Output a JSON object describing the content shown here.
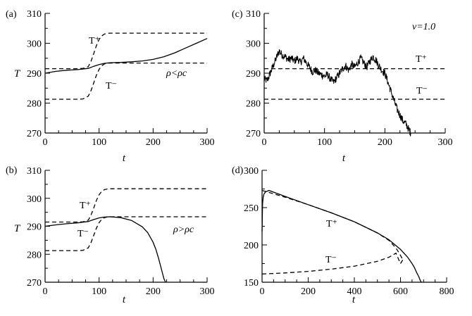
{
  "chart_data": [
    {
      "id": "a",
      "panel_label": "(a)",
      "type": "line",
      "xlabel": "t",
      "ylabel": "T",
      "xlim": [
        0,
        300
      ],
      "ylim": [
        270,
        310
      ],
      "xticks": [
        0,
        100,
        200,
        300
      ],
      "yticks": [
        270,
        280,
        290,
        300,
        310
      ],
      "annotation": "ρ<ρc",
      "series": [
        {
          "role": "T_plus",
          "style": "dashed",
          "label": "T⁺",
          "x": [
            0,
            60,
            70,
            80,
            85,
            90,
            95,
            100,
            105,
            110,
            115,
            120,
            130,
            300
          ],
          "y": [
            291.5,
            291.5,
            291.6,
            292.2,
            294.0,
            296.5,
            299.2,
            301.3,
            302.5,
            303.1,
            303.3,
            303.4,
            303.4,
            303.4
          ]
        },
        {
          "role": "T_minus",
          "style": "dashed",
          "label": "T⁻",
          "x": [
            0,
            60,
            70,
            80,
            85,
            90,
            95,
            100,
            105,
            110,
            115,
            120,
            130,
            300
          ],
          "y": [
            281.3,
            281.3,
            281.4,
            282.3,
            284.2,
            286.7,
            289.3,
            291.3,
            292.5,
            293.1,
            293.3,
            293.4,
            293.4,
            293.4
          ]
        },
        {
          "role": "T",
          "style": "solid",
          "x": [
            0,
            20,
            40,
            60,
            80,
            90,
            100,
            110,
            120,
            140,
            160,
            180,
            200,
            220,
            240,
            260,
            280,
            300
          ],
          "y": [
            290.0,
            290.6,
            291.0,
            291.2,
            291.6,
            292.3,
            292.9,
            293.3,
            293.5,
            293.6,
            293.8,
            294.1,
            294.6,
            295.5,
            296.8,
            298.4,
            300.0,
            301.6
          ]
        }
      ]
    },
    {
      "id": "b",
      "panel_label": "(b)",
      "type": "line",
      "xlabel": "t",
      "ylabel": "T",
      "xlim": [
        0,
        300
      ],
      "ylim": [
        270,
        310
      ],
      "xticks": [
        0,
        100,
        200,
        300
      ],
      "yticks": [
        270,
        280,
        290,
        300,
        310
      ],
      "annotation": "ρ>ρc",
      "series": [
        {
          "role": "T_plus",
          "style": "dashed",
          "label": "T⁺",
          "x": [
            0,
            60,
            70,
            80,
            85,
            90,
            95,
            100,
            105,
            110,
            115,
            120,
            130,
            300
          ],
          "y": [
            291.5,
            291.5,
            291.6,
            292.2,
            294.0,
            296.5,
            299.2,
            301.3,
            302.5,
            303.1,
            303.3,
            303.4,
            303.4,
            303.4
          ]
        },
        {
          "role": "T_minus",
          "style": "dashed",
          "label": "T⁻",
          "x": [
            0,
            60,
            70,
            80,
            85,
            90,
            95,
            100,
            105,
            110,
            115,
            120,
            130,
            300
          ],
          "y": [
            281.3,
            281.3,
            281.4,
            282.3,
            284.2,
            286.7,
            289.3,
            291.3,
            292.5,
            293.1,
            293.3,
            293.4,
            293.4,
            293.4
          ]
        },
        {
          "role": "T",
          "style": "solid",
          "x": [
            0,
            20,
            40,
            60,
            80,
            90,
            100,
            110,
            120,
            140,
            160,
            180,
            190,
            200,
            205,
            210,
            215,
            220,
            223
          ],
          "y": [
            290.0,
            290.5,
            290.9,
            291.2,
            291.7,
            292.4,
            293.0,
            293.3,
            293.4,
            293.1,
            292.1,
            289.8,
            287.7,
            284.3,
            281.8,
            278.6,
            275.0,
            271.2,
            270.0
          ]
        }
      ]
    },
    {
      "id": "c",
      "panel_label": "(c)",
      "type": "line",
      "xlabel": "t",
      "xlim": [
        0,
        300
      ],
      "ylim": [
        270,
        310
      ],
      "xticks": [
        0,
        100,
        200,
        300
      ],
      "yticks": [
        270,
        280,
        290,
        300,
        310
      ],
      "annotation": "v=1.0",
      "series": [
        {
          "role": "T_plus",
          "style": "dashed",
          "label": "T⁺",
          "x": [
            0,
            300
          ],
          "y": [
            291.5,
            291.5
          ]
        },
        {
          "role": "T_minus",
          "style": "dashed",
          "label": "T⁻",
          "x": [
            0,
            300
          ],
          "y": [
            281.3,
            281.3
          ]
        },
        {
          "role": "T",
          "style": "solid",
          "noisy": true,
          "x": [
            0,
            5,
            10,
            15,
            20,
            25,
            30,
            35,
            40,
            45,
            50,
            55,
            60,
            65,
            70,
            75,
            80,
            85,
            90,
            95,
            100,
            105,
            110,
            115,
            120,
            125,
            130,
            135,
            140,
            145,
            150,
            155,
            160,
            165,
            170,
            175,
            180,
            185,
            190,
            195,
            200,
            205,
            210,
            215,
            220,
            225,
            230,
            235,
            240,
            243
          ],
          "y": [
            288,
            287.5,
            290,
            292.5,
            295,
            297.5,
            296,
            295.5,
            294.5,
            295,
            294,
            295,
            293.5,
            295,
            293.5,
            292,
            290.5,
            291,
            290,
            289.5,
            289,
            289.5,
            288,
            287,
            288.5,
            290,
            291.5,
            292.5,
            291,
            293,
            292,
            293.5,
            295,
            293.5,
            292,
            294,
            295.5,
            294.5,
            292.5,
            291,
            290,
            287,
            284,
            281,
            278,
            276,
            274,
            273,
            271,
            270
          ]
        }
      ]
    },
    {
      "id": "d",
      "panel_label": "(d)",
      "type": "line",
      "xlabel": "t",
      "xlim": [
        0,
        800
      ],
      "ylim": [
        150,
        300
      ],
      "xticks": [
        0,
        200,
        400,
        600,
        800
      ],
      "yticks": [
        150,
        200,
        250,
        300
      ],
      "series": [
        {
          "role": "T_plus",
          "style": "dashed",
          "label": "T⁺",
          "x": [
            0,
            100,
            200,
            300,
            400,
            500,
            550,
            580,
            600,
            610
          ],
          "y": [
            273,
            264,
            254,
            243,
            231,
            216,
            206,
            196,
            186,
            180
          ]
        },
        {
          "role": "T_minus",
          "style": "dashed",
          "label": "T⁻",
          "x": [
            0,
            100,
            200,
            300,
            400,
            500,
            550,
            580,
            600,
            610
          ],
          "y": [
            161,
            162.5,
            164.5,
            167.5,
            171.5,
            178,
            183.5,
            189,
            175,
            180
          ]
        },
        {
          "role": "T",
          "style": "solid",
          "x": [
            0,
            2,
            5,
            8,
            15,
            30,
            100,
            200,
            300,
            400,
            500,
            550,
            600,
            630,
            650,
            660,
            670,
            680,
            685,
            690
          ],
          "y": [
            218,
            255,
            264,
            268,
            271,
            273,
            265,
            254,
            243,
            231,
            216,
            207,
            194,
            184,
            175,
            170,
            163,
            157,
            153,
            150
          ]
        }
      ]
    }
  ]
}
